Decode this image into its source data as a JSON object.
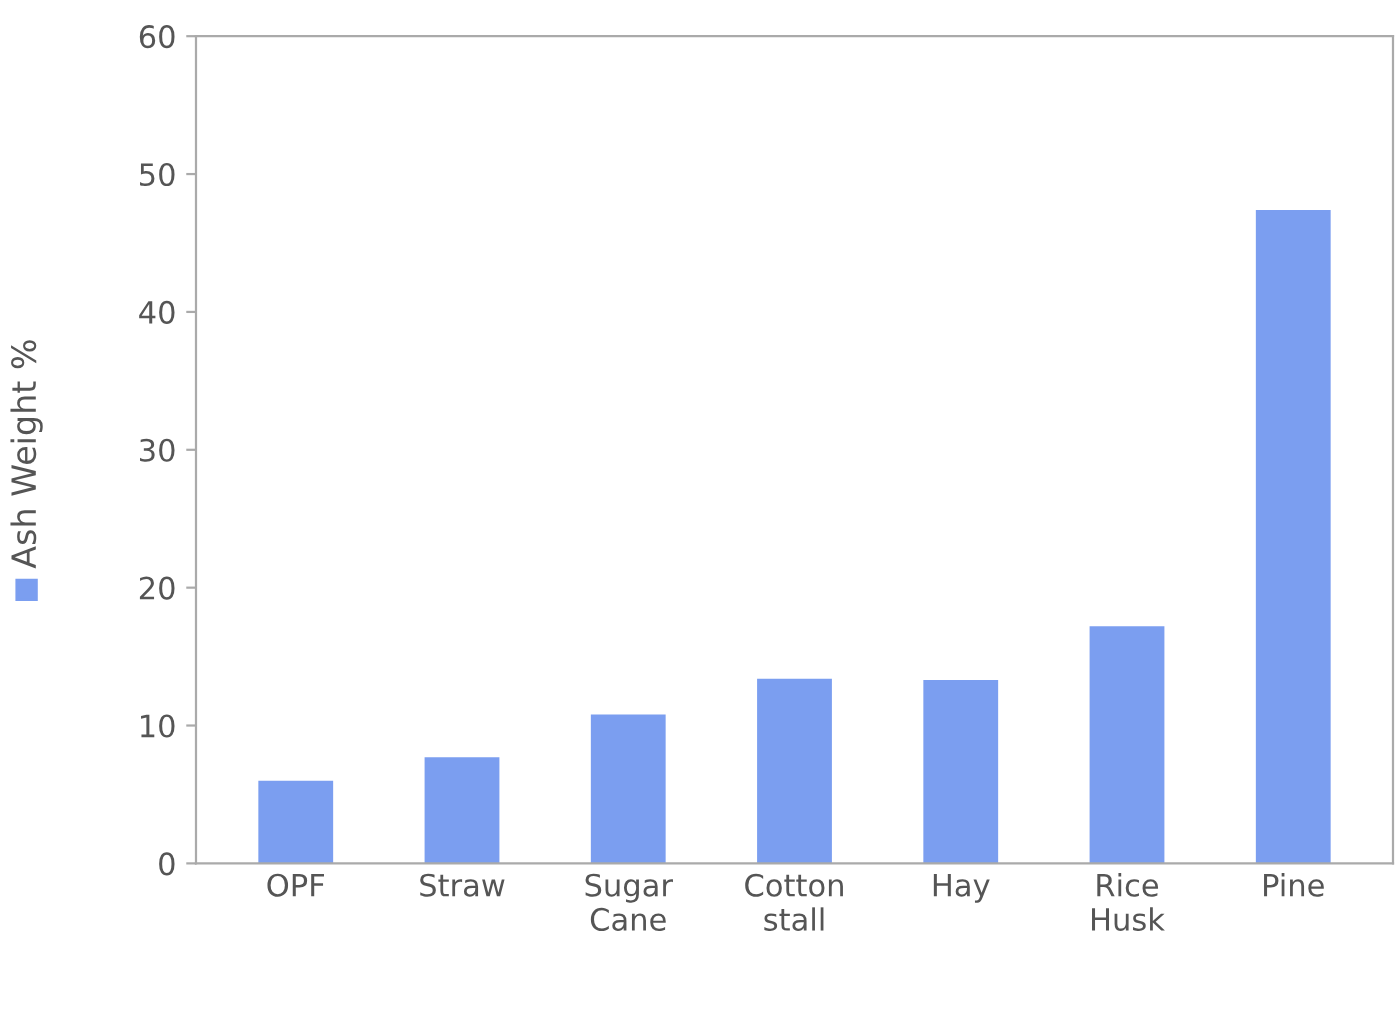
{
  "chart_data": {
    "type": "bar",
    "categories": [
      "OPF",
      "Straw",
      "Sugar\nCane",
      "Cotton\nstall",
      "Hay",
      "Rice\nHusk",
      "Pine"
    ],
    "series": [
      {
        "name": "Ash Weight %",
        "color": "#7b9ef0",
        "values": [
          6.0,
          7.7,
          10.8,
          13.4,
          13.3,
          17.2,
          47.4
        ]
      }
    ],
    "ylim": [
      0,
      60
    ],
    "yticks": [
      0,
      10,
      20,
      30,
      40,
      50,
      60
    ],
    "grid": false,
    "legend": "left"
  }
}
